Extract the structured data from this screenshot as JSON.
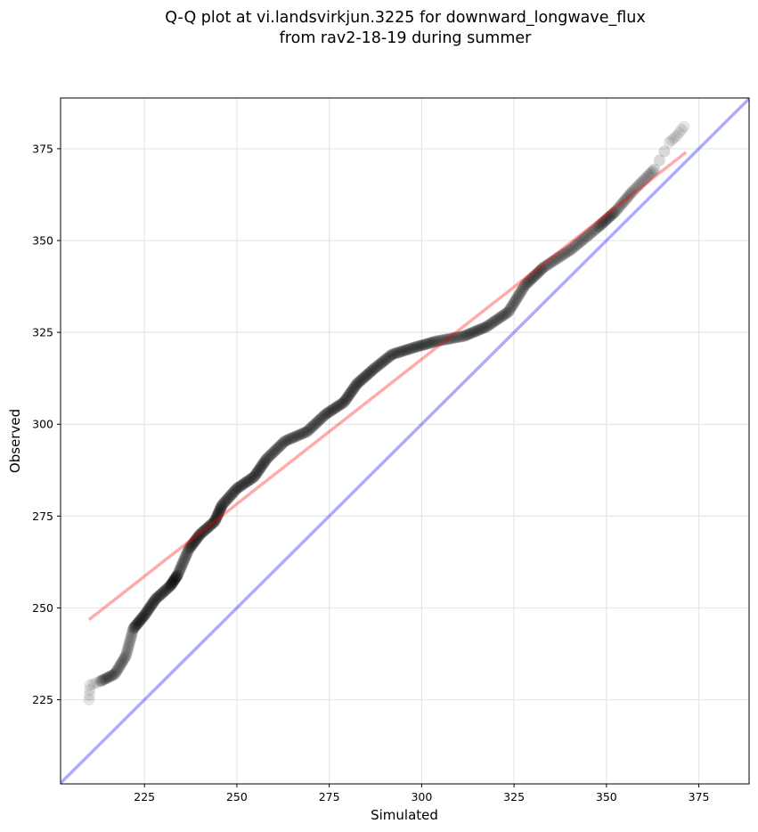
{
  "chart_data": {
    "type": "scatter",
    "title_line1": "Q-Q plot at vi.landsvirkjun.3225 for downward_longwave_flux",
    "title_line2": "from rav2-18-19 during summer",
    "xlabel": "Simulated",
    "ylabel": "Observed",
    "xlim": [
      202.3,
      388.6
    ],
    "ylim": [
      202.1,
      388.8
    ],
    "grid": true,
    "xticks": [
      225,
      250,
      275,
      300,
      325,
      350,
      375
    ],
    "yticks": [
      225,
      250,
      275,
      300,
      325,
      350,
      375
    ],
    "xtick_labels": [
      "225",
      "250",
      "275",
      "300",
      "325",
      "350",
      "375"
    ],
    "ytick_labels": [
      "225",
      "250",
      "275",
      "300",
      "325",
      "350",
      "375"
    ],
    "quantiles": [
      [
        210,
        225
      ],
      [
        210.3,
        229
      ],
      [
        213,
        230
      ],
      [
        217,
        232
      ],
      [
        220,
        237
      ],
      [
        222,
        244.4
      ],
      [
        225,
        248
      ],
      [
        228,
        252.4
      ],
      [
        232,
        256
      ],
      [
        234,
        259
      ],
      [
        237,
        266
      ],
      [
        240,
        270
      ],
      [
        244,
        273.5
      ],
      [
        246,
        278
      ],
      [
        250,
        282.5
      ],
      [
        254.7,
        285.7
      ],
      [
        258,
        290.5
      ],
      [
        263,
        295.4
      ],
      [
        269,
        298
      ],
      [
        274,
        302.7
      ],
      [
        279,
        306
      ],
      [
        282.5,
        311
      ],
      [
        287,
        315
      ],
      [
        292,
        319
      ],
      [
        298,
        320.9
      ],
      [
        304,
        322.6
      ],
      [
        311.5,
        324
      ],
      [
        317.5,
        326.5
      ],
      [
        323.5,
        330.6
      ],
      [
        328,
        337.9
      ],
      [
        333,
        342.7
      ],
      [
        340.5,
        347.6
      ],
      [
        347.7,
        353.6
      ],
      [
        352.5,
        358
      ],
      [
        357,
        363.3
      ],
      [
        363,
        369.4
      ],
      [
        367,
        376.7
      ],
      [
        369,
        378.5
      ],
      [
        371,
        381
      ]
    ],
    "fit_line": {
      "x": [
        210,
        371.5
      ],
      "y": [
        246.8,
        374
      ]
    },
    "identity_line": {
      "x": [
        202.3,
        388.6
      ],
      "y": [
        202.3,
        388.6
      ]
    },
    "colors": {
      "points": "#000000",
      "fit_line": "#ff0000",
      "identity_line": "#0000ff",
      "grid": "#e6e6e6"
    }
  }
}
